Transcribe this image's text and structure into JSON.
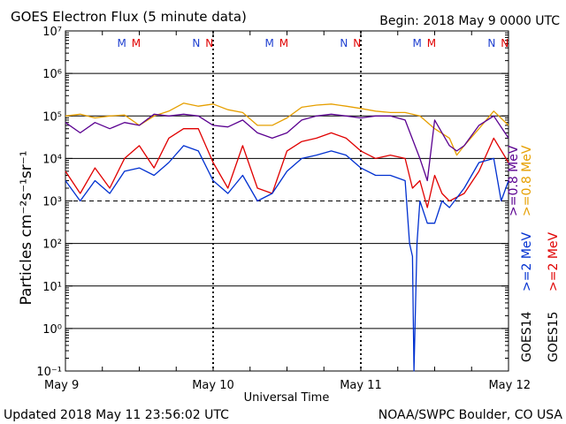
{
  "header": {
    "title": "GOES Electron Flux (5 minute data)",
    "begin": "Begin: 2018 May 9 0000 UTC"
  },
  "footer": {
    "updated": "Updated 2018 May 11 23:56:02 UTC",
    "source": "NOAA/SWPC Boulder, CO USA"
  },
  "colors": {
    "goes15_ge08": "#e69f00",
    "goes14_ge08": "#5a0090",
    "goes15_ge2": "#e00000",
    "goes14_ge2": "#0030d0",
    "m_blue": "#2040d0",
    "m_red": "#e00000"
  },
  "markers": [
    {
      "day": 0.43,
      "letters": [
        "M",
        "M"
      ]
    },
    {
      "day": 0.93,
      "letters": [
        "N",
        "N"
      ]
    },
    {
      "day": 1.43,
      "letters": [
        "M",
        "M"
      ]
    },
    {
      "day": 1.93,
      "letters": [
        "N",
        "N"
      ]
    },
    {
      "day": 2.43,
      "letters": [
        "M",
        "M"
      ]
    },
    {
      "day": 2.93,
      "letters": [
        "N",
        "N"
      ]
    }
  ],
  "chart_data": {
    "type": "line",
    "title": "GOES Electron Flux (5 minute data)",
    "xlabel": "Universal Time",
    "ylabel": "Particles cm⁻²s⁻¹sr⁻¹",
    "yscale": "log",
    "ylim": [
      0.1,
      10000000
    ],
    "xlim_days": [
      0,
      3
    ],
    "x_ticks": [
      "May 9",
      "May 10",
      "May 11",
      "May 12"
    ],
    "y_ticks": [
      "10⁻¹",
      "10⁰",
      "10¹",
      "10²",
      "10³",
      "10⁴",
      "10⁵",
      "10⁶",
      "10⁷"
    ],
    "threshold_line": 1000,
    "legend": {
      "goes15_ge08": ">=0.8  MeV",
      "goes14_ge08": ">=0.8  MeV",
      "goes15_ge2": ">=2  MeV",
      "goes14_ge2": ">=2  MeV",
      "goes14": "GOES14",
      "goes15": "GOES15"
    },
    "series": [
      {
        "name": "GOES15 >=0.8 MeV",
        "key": "goes15_ge08",
        "points": [
          [
            0,
            100000
          ],
          [
            0.1,
            110000
          ],
          [
            0.2,
            90000
          ],
          [
            0.3,
            100000
          ],
          [
            0.4,
            105000
          ],
          [
            0.5,
            60000
          ],
          [
            0.6,
            100000
          ],
          [
            0.7,
            130000
          ],
          [
            0.8,
            200000
          ],
          [
            0.9,
            170000
          ],
          [
            1.0,
            190000
          ],
          [
            1.1,
            140000
          ],
          [
            1.2,
            120000
          ],
          [
            1.3,
            60000
          ],
          [
            1.4,
            60000
          ],
          [
            1.5,
            90000
          ],
          [
            1.6,
            160000
          ],
          [
            1.7,
            180000
          ],
          [
            1.8,
            190000
          ],
          [
            1.9,
            170000
          ],
          [
            2.0,
            150000
          ],
          [
            2.1,
            130000
          ],
          [
            2.2,
            120000
          ],
          [
            2.3,
            120000
          ],
          [
            2.4,
            100000
          ],
          [
            2.5,
            50000
          ],
          [
            2.6,
            30000
          ],
          [
            2.65,
            12000
          ],
          [
            2.7,
            20000
          ],
          [
            2.8,
            50000
          ],
          [
            2.9,
            130000
          ],
          [
            3.0,
            60000
          ]
        ]
      },
      {
        "name": "GOES14 >=0.8 MeV",
        "key": "goes14_ge08",
        "points": [
          [
            0,
            70000
          ],
          [
            0.1,
            40000
          ],
          [
            0.2,
            70000
          ],
          [
            0.3,
            50000
          ],
          [
            0.4,
            70000
          ],
          [
            0.5,
            60000
          ],
          [
            0.6,
            110000
          ],
          [
            0.7,
            100000
          ],
          [
            0.8,
            110000
          ],
          [
            0.9,
            100000
          ],
          [
            1.0,
            60000
          ],
          [
            1.1,
            55000
          ],
          [
            1.2,
            80000
          ],
          [
            1.3,
            40000
          ],
          [
            1.4,
            30000
          ],
          [
            1.5,
            40000
          ],
          [
            1.6,
            80000
          ],
          [
            1.7,
            100000
          ],
          [
            1.8,
            110000
          ],
          [
            1.9,
            100000
          ],
          [
            2.0,
            90000
          ],
          [
            2.1,
            100000
          ],
          [
            2.2,
            100000
          ],
          [
            2.3,
            80000
          ],
          [
            2.4,
            10000
          ],
          [
            2.45,
            3000
          ],
          [
            2.5,
            80000
          ],
          [
            2.6,
            20000
          ],
          [
            2.65,
            15000
          ],
          [
            2.7,
            20000
          ],
          [
            2.8,
            60000
          ],
          [
            2.9,
            100000
          ],
          [
            3.0,
            30000
          ]
        ]
      },
      {
        "name": "GOES15 >=2 MeV",
        "key": "goes15_ge2",
        "points": [
          [
            0,
            5000
          ],
          [
            0.1,
            1500
          ],
          [
            0.2,
            6000
          ],
          [
            0.3,
            2000
          ],
          [
            0.4,
            10000
          ],
          [
            0.5,
            20000
          ],
          [
            0.6,
            6000
          ],
          [
            0.7,
            30000
          ],
          [
            0.8,
            50000
          ],
          [
            0.9,
            50000
          ],
          [
            1.0,
            8000
          ],
          [
            1.1,
            2000
          ],
          [
            1.2,
            20000
          ],
          [
            1.3,
            2000
          ],
          [
            1.4,
            1500
          ],
          [
            1.5,
            15000
          ],
          [
            1.6,
            25000
          ],
          [
            1.7,
            30000
          ],
          [
            1.8,
            40000
          ],
          [
            1.9,
            30000
          ],
          [
            2.0,
            15000
          ],
          [
            2.1,
            10000
          ],
          [
            2.2,
            12000
          ],
          [
            2.3,
            10000
          ],
          [
            2.35,
            2000
          ],
          [
            2.4,
            3000
          ],
          [
            2.45,
            700
          ],
          [
            2.5,
            4000
          ],
          [
            2.55,
            1500
          ],
          [
            2.6,
            1000
          ],
          [
            2.7,
            1500
          ],
          [
            2.8,
            5000
          ],
          [
            2.9,
            30000
          ],
          [
            3.0,
            8000
          ]
        ]
      },
      {
        "name": "GOES14 >=2 MeV",
        "key": "goes14_ge2",
        "points": [
          [
            0,
            3000
          ],
          [
            0.1,
            1000
          ],
          [
            0.2,
            3000
          ],
          [
            0.3,
            1500
          ],
          [
            0.4,
            5000
          ],
          [
            0.5,
            6000
          ],
          [
            0.6,
            4000
          ],
          [
            0.7,
            8000
          ],
          [
            0.8,
            20000
          ],
          [
            0.9,
            15000
          ],
          [
            1.0,
            3000
          ],
          [
            1.1,
            1500
          ],
          [
            1.2,
            4000
          ],
          [
            1.3,
            1000
          ],
          [
            1.4,
            1500
          ],
          [
            1.5,
            5000
          ],
          [
            1.6,
            10000
          ],
          [
            1.7,
            12000
          ],
          [
            1.8,
            15000
          ],
          [
            1.9,
            12000
          ],
          [
            2.0,
            6000
          ],
          [
            2.1,
            4000
          ],
          [
            2.2,
            4000
          ],
          [
            2.3,
            3000
          ],
          [
            2.33,
            100
          ],
          [
            2.35,
            50
          ],
          [
            2.36,
            0.1
          ],
          [
            2.38,
            100
          ],
          [
            2.4,
            1000
          ],
          [
            2.45,
            300
          ],
          [
            2.5,
            300
          ],
          [
            2.55,
            1000
          ],
          [
            2.6,
            700
          ],
          [
            2.7,
            2000
          ],
          [
            2.8,
            8000
          ],
          [
            2.9,
            10000
          ],
          [
            2.95,
            1000
          ],
          [
            3.0,
            3000
          ]
        ]
      }
    ]
  }
}
